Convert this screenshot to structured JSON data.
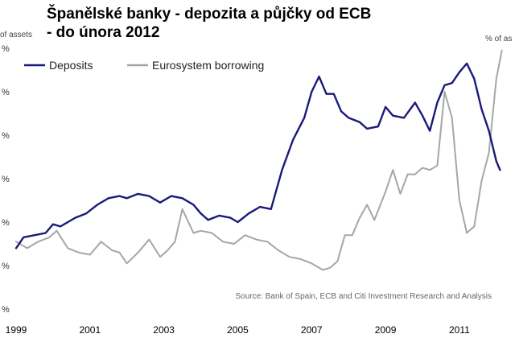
{
  "title": {
    "line1": "Španělské banky - depozita a půjčky od ECB",
    "line2": "- do února 2012"
  },
  "unit_left": "of assets",
  "unit_right": "% of as",
  "chart_data": {
    "type": "line",
    "title": "Španělské banky - depozita a půjčky od ECB - do února 2012",
    "xlabel": "",
    "ylabel": "% of assets",
    "xlim": [
      1999.0,
      2012.2
    ],
    "ylim": [
      0,
      6
    ],
    "x_ticks": [
      "1999",
      "2001",
      "2003",
      "2005",
      "2007",
      "2009",
      "2011"
    ],
    "y_tick_marks": [
      "%",
      "%",
      "%",
      "%",
      "%",
      "%",
      "%"
    ],
    "legend_position": "top-left",
    "source": "Source: Bank of Spain, ECB and Citi Investment Research and Analysis",
    "series": [
      {
        "name": "Deposits",
        "color": "#1a1a7a",
        "x": [
          1999.0,
          1999.2,
          1999.5,
          1999.8,
          2000.0,
          2000.2,
          2000.4,
          2000.6,
          2000.9,
          2001.2,
          2001.5,
          2001.8,
          2002.0,
          2002.3,
          2002.6,
          2002.9,
          2003.2,
          2003.5,
          2003.8,
          2004.0,
          2004.2,
          2004.5,
          2004.8,
          2005.0,
          2005.3,
          2005.6,
          2005.9,
          2006.2,
          2006.5,
          2006.8,
          2007.0,
          2007.2,
          2007.4,
          2007.6,
          2007.8,
          2008.0,
          2008.3,
          2008.5,
          2008.8,
          2009.0,
          2009.2,
          2009.5,
          2009.8,
          2010.0,
          2010.2,
          2010.4,
          2010.6,
          2010.8,
          2011.0,
          2011.2,
          2011.4,
          2011.6,
          2011.8,
          2012.0,
          2012.1
        ],
        "values": [
          1.4,
          1.65,
          1.7,
          1.75,
          1.95,
          1.9,
          2.0,
          2.1,
          2.2,
          2.4,
          2.55,
          2.6,
          2.55,
          2.65,
          2.6,
          2.45,
          2.6,
          2.55,
          2.4,
          2.2,
          2.05,
          2.15,
          2.1,
          2.0,
          2.2,
          2.35,
          2.3,
          3.2,
          3.9,
          4.4,
          5.0,
          5.35,
          4.95,
          4.95,
          4.55,
          4.4,
          4.3,
          4.15,
          4.2,
          4.65,
          4.45,
          4.4,
          4.75,
          4.45,
          4.1,
          4.75,
          5.15,
          5.2,
          5.45,
          5.65,
          5.3,
          4.6,
          4.1,
          3.4,
          3.2
        ]
      },
      {
        "name": "Eurosystem borrowing",
        "color": "#a6a6a6",
        "x": [
          1999.0,
          1999.3,
          1999.6,
          1999.9,
          2000.1,
          2000.4,
          2000.7,
          2001.0,
          2001.3,
          2001.6,
          2001.8,
          2002.0,
          2002.3,
          2002.6,
          2002.9,
          2003.1,
          2003.3,
          2003.5,
          2003.8,
          2004.0,
          2004.3,
          2004.6,
          2004.9,
          2005.2,
          2005.5,
          2005.8,
          2006.1,
          2006.4,
          2006.7,
          2007.0,
          2007.3,
          2007.5,
          2007.7,
          2007.9,
          2008.1,
          2008.3,
          2008.5,
          2008.7,
          2009.0,
          2009.2,
          2009.4,
          2009.6,
          2009.8,
          2010.0,
          2010.2,
          2010.4,
          2010.6,
          2010.8,
          2011.0,
          2011.2,
          2011.4,
          2011.6,
          2011.8,
          2012.0,
          2012.15
        ],
        "values": [
          1.55,
          1.4,
          1.55,
          1.65,
          1.8,
          1.4,
          1.3,
          1.25,
          1.55,
          1.35,
          1.3,
          1.05,
          1.3,
          1.6,
          1.2,
          1.35,
          1.55,
          2.3,
          1.75,
          1.8,
          1.75,
          1.55,
          1.5,
          1.7,
          1.6,
          1.55,
          1.35,
          1.2,
          1.15,
          1.05,
          0.9,
          0.95,
          1.1,
          1.7,
          1.7,
          2.1,
          2.4,
          2.05,
          2.7,
          3.2,
          2.65,
          3.1,
          3.1,
          3.25,
          3.2,
          3.3,
          5.0,
          4.4,
          2.5,
          1.75,
          1.9,
          2.95,
          3.6,
          5.3,
          5.95
        ]
      }
    ]
  }
}
